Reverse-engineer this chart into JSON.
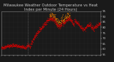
{
  "title": "Milwaukee Weather Outdoor Temperature vs Heat Index per Minute (24 Hours)",
  "bg_color": "#1a1a1a",
  "plot_bg_color": "#1a1a1a",
  "temp_color": "#dd0000",
  "heat_color": "#ff8800",
  "ylim": [
    55,
    95
  ],
  "yticks": [
    55,
    60,
    65,
    70,
    75,
    80,
    85,
    90,
    95
  ],
  "n_points": 1440,
  "vline_x": 390,
  "title_fontsize": 3.8,
  "tick_fontsize": 2.8,
  "title_color": "#cccccc",
  "tick_color": "#cccccc",
  "spine_color": "#888888",
  "grid_color": "#444444"
}
